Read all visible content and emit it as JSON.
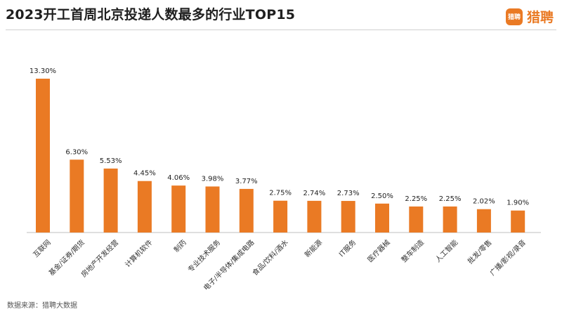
{
  "header": {
    "title": "2023开工首周北京投递人数最多的行业TOP15",
    "logo_badge": "猎聘",
    "logo_text": "猎聘"
  },
  "footer": {
    "source": "数据来源：猎聘大数据"
  },
  "colors": {
    "bar": "#ea7a24",
    "accent": "#ea7a24"
  },
  "chart_data": {
    "type": "bar",
    "title": "2023开工首周北京投递人数最多的行业TOP15",
    "categories": [
      "互联网",
      "基金/证券/期货",
      "房地产开发经营",
      "计算机软件",
      "制药",
      "专业技术服务",
      "电子/半导体/集成电路",
      "食品/饮料/酒水",
      "新能源",
      "IT服务",
      "医疗器械",
      "整车制造",
      "人工智能",
      "批发/零售",
      "广播/影视/录音"
    ],
    "values": [
      13.3,
      6.3,
      5.53,
      4.45,
      4.06,
      3.98,
      3.77,
      2.75,
      2.74,
      2.73,
      2.5,
      2.25,
      2.25,
      2.02,
      1.9
    ],
    "labels": [
      "13.30%",
      "6.30%",
      "5.53%",
      "4.45%",
      "4.06%",
      "3.98%",
      "3.77%",
      "2.75%",
      "2.74%",
      "2.73%",
      "2.50%",
      "2.25%",
      "2.25%",
      "2.02%",
      "1.90%"
    ],
    "ylim": [
      0,
      14
    ],
    "grid": false,
    "legend": "none"
  }
}
